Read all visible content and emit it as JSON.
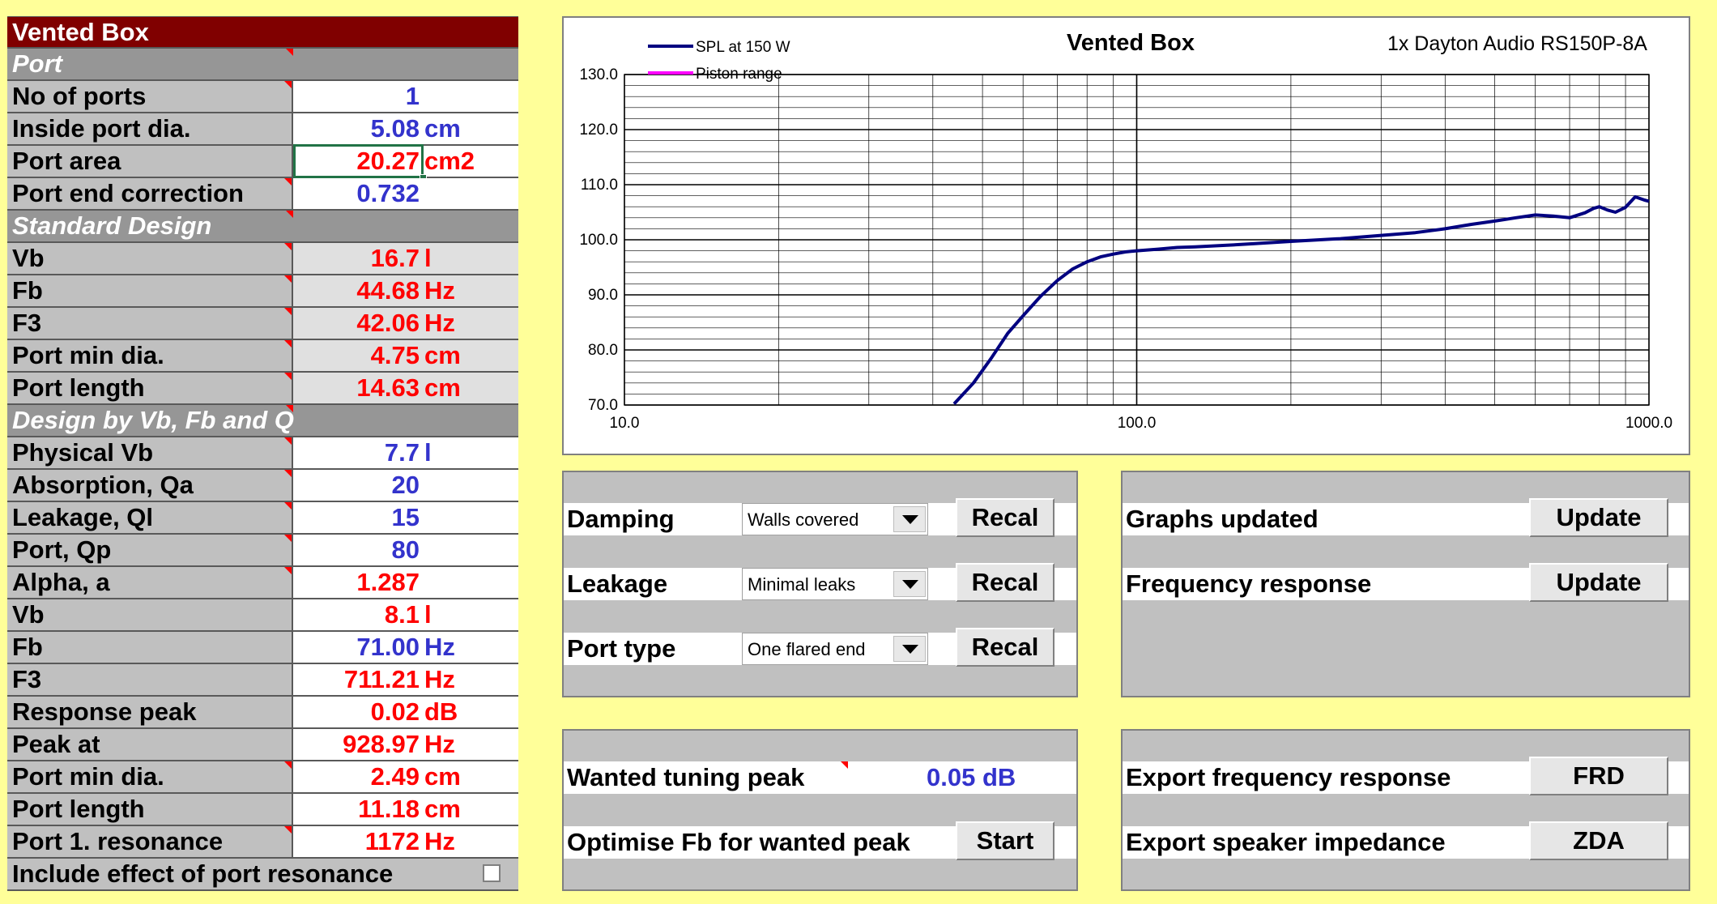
{
  "left_table": {
    "title": "Vented Box",
    "sections": {
      "port": "Port",
      "standard": "Standard Design",
      "design_vfq": "Design by Vb, Fb and Q"
    },
    "rows": {
      "no_ports": {
        "label": "No of ports",
        "value": "1",
        "unit": ""
      },
      "inside_dia": {
        "label": "Inside port dia.",
        "value": "5.08",
        "unit": "cm"
      },
      "port_area": {
        "label": "Port area",
        "value": "20.27",
        "unit": "cm2"
      },
      "end_corr": {
        "label": "Port end correction",
        "value": "0.732",
        "unit": ""
      },
      "std_vb": {
        "label": "Vb",
        "value": "16.7",
        "unit": "l"
      },
      "std_fb": {
        "label": "Fb",
        "value": "44.68",
        "unit": "Hz"
      },
      "std_f3": {
        "label": "F3",
        "value": "42.06",
        "unit": "Hz"
      },
      "std_minDia": {
        "label": "Port min dia.",
        "value": "4.75",
        "unit": "cm"
      },
      "std_len": {
        "label": "Port length",
        "value": "14.63",
        "unit": "cm"
      },
      "phys_vb": {
        "label": "Physical Vb",
        "value": "7.7",
        "unit": "l"
      },
      "qa": {
        "label": "Absorption, Qa",
        "value": "20",
        "unit": ""
      },
      "ql": {
        "label": "Leakage, Ql",
        "value": "15",
        "unit": ""
      },
      "qp": {
        "label": "Port, Qp",
        "value": "80",
        "unit": ""
      },
      "alpha": {
        "label": "Alpha, a",
        "value": "1.287",
        "unit": ""
      },
      "d_vb": {
        "label": "Vb",
        "value": "8.1",
        "unit": "l"
      },
      "d_fb": {
        "label": "Fb",
        "value": "71.00",
        "unit": "Hz"
      },
      "d_f3": {
        "label": "F3",
        "value": "711.21",
        "unit": "Hz"
      },
      "d_peak": {
        "label": "Response peak",
        "value": "0.02",
        "unit": "dB"
      },
      "d_peakat": {
        "label": "Peak at",
        "value": "928.97",
        "unit": "Hz"
      },
      "d_minDia": {
        "label": "Port min dia.",
        "value": "2.49",
        "unit": "cm"
      },
      "d_len": {
        "label": "Port length",
        "value": "11.18",
        "unit": "cm"
      },
      "d_res": {
        "label": "Port 1. resonance",
        "value": "1172",
        "unit": "Hz"
      }
    },
    "include_resonance": {
      "label": "Include effect of port resonance",
      "checked": false
    }
  },
  "panel_options": {
    "damping": {
      "label": "Damping",
      "selected": "Walls covered",
      "button": "Recal"
    },
    "leakage": {
      "label": "Leakage",
      "selected": "Minimal leaks",
      "button": "Recal"
    },
    "port_type": {
      "label": "Port type",
      "selected": "One flared end",
      "button": "Recal"
    }
  },
  "panel_updates": {
    "graphs": {
      "label": "Graphs updated",
      "button": "Update"
    },
    "freq": {
      "label": "Frequency response",
      "button": "Update"
    }
  },
  "panel_tuning": {
    "wanted": {
      "label": "Wanted tuning peak",
      "value": "0.05 dB"
    },
    "optimise": {
      "label": "Optimise Fb for wanted peak",
      "button": "Start"
    }
  },
  "panel_export": {
    "frd": {
      "label": "Export frequency response",
      "button": "FRD"
    },
    "zda": {
      "label": "Export speaker impedance",
      "button": "ZDA"
    }
  },
  "chart_data": {
    "type": "line",
    "title": "Vented Box",
    "subtitle": "1x Dayton Audio RS150P-8A",
    "xscale": "log",
    "xlim": [
      10,
      1000
    ],
    "ylim": [
      70,
      130
    ],
    "xticks": [
      "10.0",
      "100.0",
      "1000.0"
    ],
    "yticks": [
      "70.0",
      "80.0",
      "90.0",
      "100.0",
      "110.0",
      "120.0",
      "130.0"
    ],
    "grid": true,
    "legend_position": "top-left",
    "series": [
      {
        "name": "SPL at 150 W",
        "color": "#000080",
        "x": [
          44,
          48,
          52,
          56,
          60,
          65,
          70,
          75,
          80,
          85,
          90,
          95,
          100,
          110,
          120,
          130,
          150,
          170,
          200,
          250,
          300,
          350,
          400,
          450,
          500,
          550,
          600,
          650,
          700,
          750,
          780,
          800,
          830,
          860,
          900,
          940,
          980,
          1000
        ],
        "y": [
          70.2,
          74.0,
          78.5,
          83.0,
          86.2,
          89.8,
          92.6,
          94.7,
          96.0,
          96.9,
          97.4,
          97.8,
          98.0,
          98.3,
          98.6,
          98.7,
          99.0,
          99.3,
          99.7,
          100.2,
          100.8,
          101.3,
          102.0,
          102.8,
          103.4,
          104.0,
          104.5,
          104.3,
          104.0,
          104.9,
          105.7,
          106.0,
          105.4,
          105.0,
          105.9,
          107.8,
          107.2,
          107.0
        ]
      },
      {
        "name": "Piston range",
        "color": "#ff00ff",
        "x": [],
        "y": []
      }
    ]
  }
}
